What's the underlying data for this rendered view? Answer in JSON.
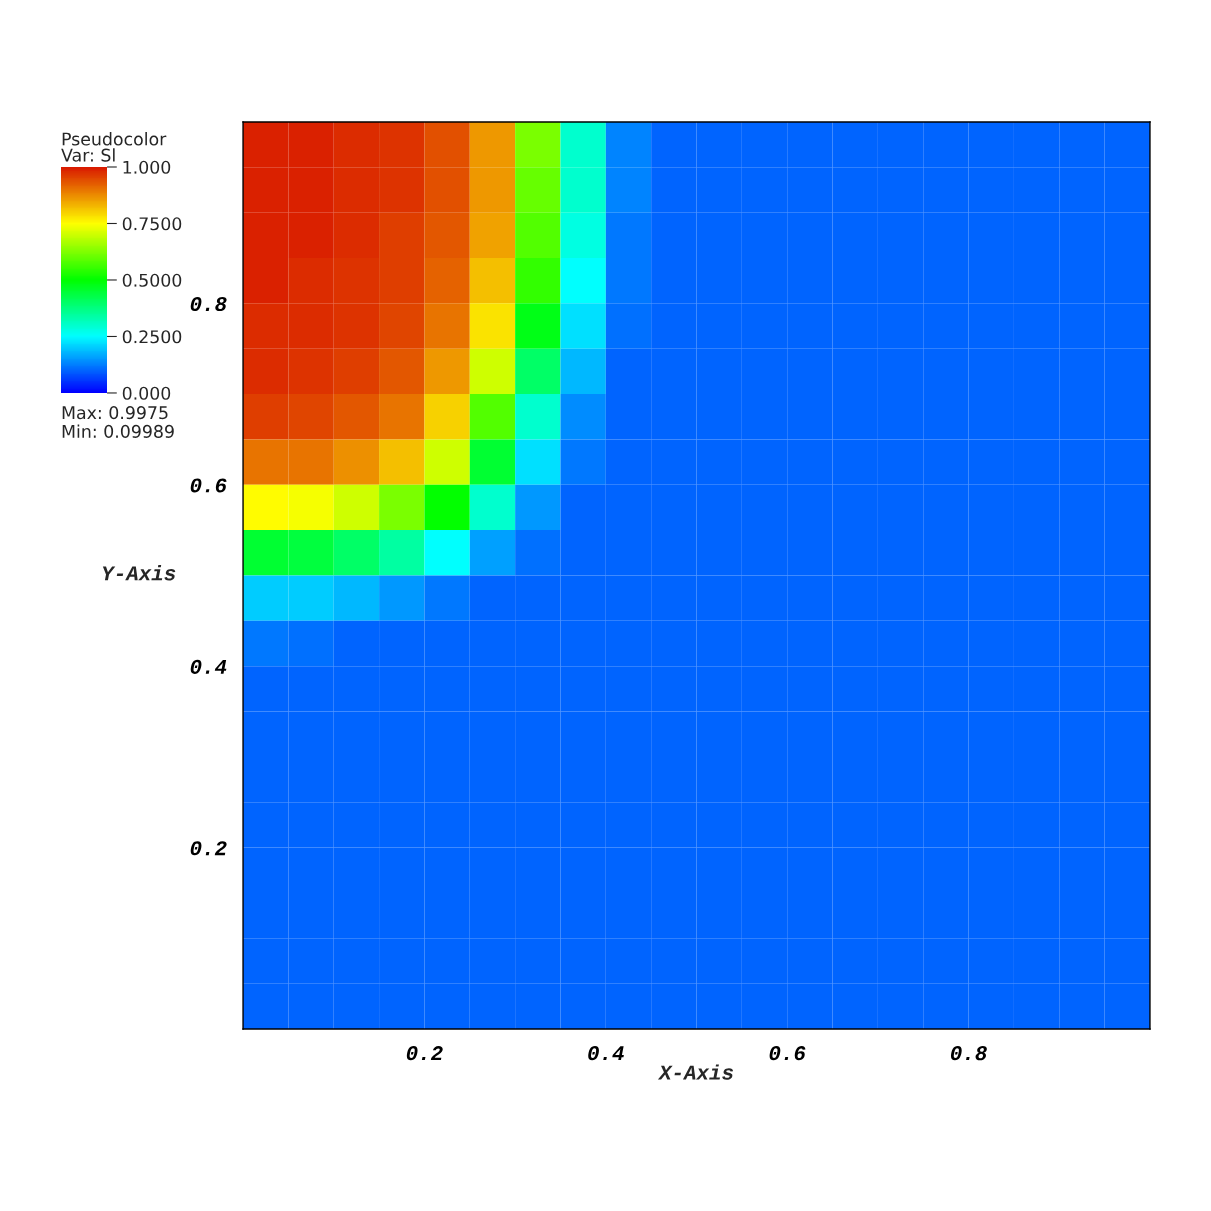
{
  "chart_data": {
    "type": "heatmap",
    "clabel": "Pseudocolor\nVar: Sl",
    "xlabel": "X-Axis",
    "ylabel": "Y-Axis",
    "annotations": [
      "Max: 0.9975",
      "Min: 0.09989"
    ],
    "x": [
      0.025,
      0.075,
      0.125,
      0.175,
      0.225,
      0.275,
      0.325,
      0.375,
      0.425,
      0.475,
      0.525,
      0.575,
      0.625,
      0.675,
      0.725,
      0.775,
      0.825,
      0.875,
      0.925,
      0.975
    ],
    "y": [
      0.975,
      0.925,
      0.875,
      0.825,
      0.775,
      0.725,
      0.675,
      0.625,
      0.575,
      0.525,
      0.475,
      0.425,
      0.375,
      0.325,
      0.275,
      0.225,
      0.175,
      0.125,
      0.075,
      0.025
    ],
    "xlim": [
      0,
      1
    ],
    "ylim": [
      0,
      1
    ],
    "xticks": [
      0.2,
      0.4,
      0.6,
      0.8
    ],
    "yticks": [
      0.2,
      0.4,
      0.6,
      0.8
    ],
    "clim": [
      0,
      1
    ],
    "cticks": [
      {
        "value": 0,
        "label": "0.000"
      },
      {
        "value": 0.25,
        "label": "0.2500"
      },
      {
        "value": 0.5,
        "label": "0.5000"
      },
      {
        "value": 0.75,
        "label": "0.7500"
      },
      {
        "value": 1,
        "label": "1.000"
      }
    ],
    "cells": [
      [
        0.99,
        0.99,
        0.98,
        0.97,
        0.94,
        0.86,
        0.62,
        0.3,
        0.13,
        0.1,
        0.1,
        0.1,
        0.1,
        0.1,
        0.1,
        0.1,
        0.1,
        0.1,
        0.1,
        0.1
      ],
      [
        0.99,
        0.99,
        0.98,
        0.97,
        0.94,
        0.86,
        0.6,
        0.3,
        0.13,
        0.1,
        0.1,
        0.1,
        0.1,
        0.1,
        0.1,
        0.1,
        0.1,
        0.1,
        0.1,
        0.1
      ],
      [
        0.99,
        0.99,
        0.98,
        0.96,
        0.93,
        0.85,
        0.58,
        0.28,
        0.12,
        0.1,
        0.1,
        0.1,
        0.1,
        0.1,
        0.1,
        0.1,
        0.1,
        0.1,
        0.1,
        0.1
      ],
      [
        0.99,
        0.98,
        0.97,
        0.96,
        0.92,
        0.82,
        0.55,
        0.25,
        0.12,
        0.1,
        0.1,
        0.1,
        0.1,
        0.1,
        0.1,
        0.1,
        0.1,
        0.1,
        0.1,
        0.1
      ],
      [
        0.98,
        0.98,
        0.97,
        0.95,
        0.9,
        0.78,
        0.48,
        0.22,
        0.11,
        0.1,
        0.1,
        0.1,
        0.1,
        0.1,
        0.1,
        0.1,
        0.1,
        0.1,
        0.1,
        0.1
      ],
      [
        0.98,
        0.97,
        0.96,
        0.93,
        0.86,
        0.7,
        0.4,
        0.18,
        0.1,
        0.1,
        0.1,
        0.1,
        0.1,
        0.1,
        0.1,
        0.1,
        0.1,
        0.1,
        0.1,
        0.1
      ],
      [
        0.96,
        0.95,
        0.93,
        0.9,
        0.8,
        0.58,
        0.3,
        0.14,
        0.1,
        0.1,
        0.1,
        0.1,
        0.1,
        0.1,
        0.1,
        0.1,
        0.1,
        0.1,
        0.1,
        0.1
      ],
      [
        0.9,
        0.9,
        0.87,
        0.82,
        0.7,
        0.45,
        0.22,
        0.12,
        0.1,
        0.1,
        0.1,
        0.1,
        0.1,
        0.1,
        0.1,
        0.1,
        0.1,
        0.1,
        0.1,
        0.1
      ],
      [
        0.75,
        0.74,
        0.7,
        0.62,
        0.5,
        0.3,
        0.15,
        0.1,
        0.1,
        0.1,
        0.1,
        0.1,
        0.1,
        0.1,
        0.1,
        0.1,
        0.1,
        0.1,
        0.1,
        0.1
      ],
      [
        0.45,
        0.44,
        0.4,
        0.34,
        0.25,
        0.16,
        0.11,
        0.1,
        0.1,
        0.1,
        0.1,
        0.1,
        0.1,
        0.1,
        0.1,
        0.1,
        0.1,
        0.1,
        0.1,
        0.1
      ],
      [
        0.2,
        0.2,
        0.18,
        0.15,
        0.12,
        0.1,
        0.1,
        0.1,
        0.1,
        0.1,
        0.1,
        0.1,
        0.1,
        0.1,
        0.1,
        0.1,
        0.1,
        0.1,
        0.1,
        0.1
      ],
      [
        0.12,
        0.11,
        0.1,
        0.1,
        0.1,
        0.1,
        0.1,
        0.1,
        0.1,
        0.1,
        0.1,
        0.1,
        0.1,
        0.1,
        0.1,
        0.1,
        0.1,
        0.1,
        0.1,
        0.1
      ],
      [
        0.1,
        0.1,
        0.1,
        0.1,
        0.1,
        0.1,
        0.1,
        0.1,
        0.1,
        0.1,
        0.1,
        0.1,
        0.1,
        0.1,
        0.1,
        0.1,
        0.1,
        0.1,
        0.1,
        0.1
      ],
      [
        0.1,
        0.1,
        0.1,
        0.1,
        0.1,
        0.1,
        0.1,
        0.1,
        0.1,
        0.1,
        0.1,
        0.1,
        0.1,
        0.1,
        0.1,
        0.1,
        0.1,
        0.1,
        0.1,
        0.1
      ],
      [
        0.1,
        0.1,
        0.1,
        0.1,
        0.1,
        0.1,
        0.1,
        0.1,
        0.1,
        0.1,
        0.1,
        0.1,
        0.1,
        0.1,
        0.1,
        0.1,
        0.1,
        0.1,
        0.1,
        0.1
      ],
      [
        0.1,
        0.1,
        0.1,
        0.1,
        0.1,
        0.1,
        0.1,
        0.1,
        0.1,
        0.1,
        0.1,
        0.1,
        0.1,
        0.1,
        0.1,
        0.1,
        0.1,
        0.1,
        0.1,
        0.1
      ],
      [
        0.1,
        0.1,
        0.1,
        0.1,
        0.1,
        0.1,
        0.1,
        0.1,
        0.1,
        0.1,
        0.1,
        0.1,
        0.1,
        0.1,
        0.1,
        0.1,
        0.1,
        0.1,
        0.1,
        0.1
      ],
      [
        0.1,
        0.1,
        0.1,
        0.1,
        0.1,
        0.1,
        0.1,
        0.1,
        0.1,
        0.1,
        0.1,
        0.1,
        0.1,
        0.1,
        0.1,
        0.1,
        0.1,
        0.1,
        0.1,
        0.1
      ],
      [
        0.1,
        0.1,
        0.1,
        0.1,
        0.1,
        0.1,
        0.1,
        0.1,
        0.1,
        0.1,
        0.1,
        0.1,
        0.1,
        0.1,
        0.1,
        0.1,
        0.1,
        0.1,
        0.1,
        0.1
      ],
      [
        0.1,
        0.1,
        0.1,
        0.1,
        0.1,
        0.1,
        0.1,
        0.1,
        0.1,
        0.1,
        0.1,
        0.1,
        0.1,
        0.1,
        0.1,
        0.1,
        0.1,
        0.1,
        0.1,
        0.1
      ]
    ]
  }
}
